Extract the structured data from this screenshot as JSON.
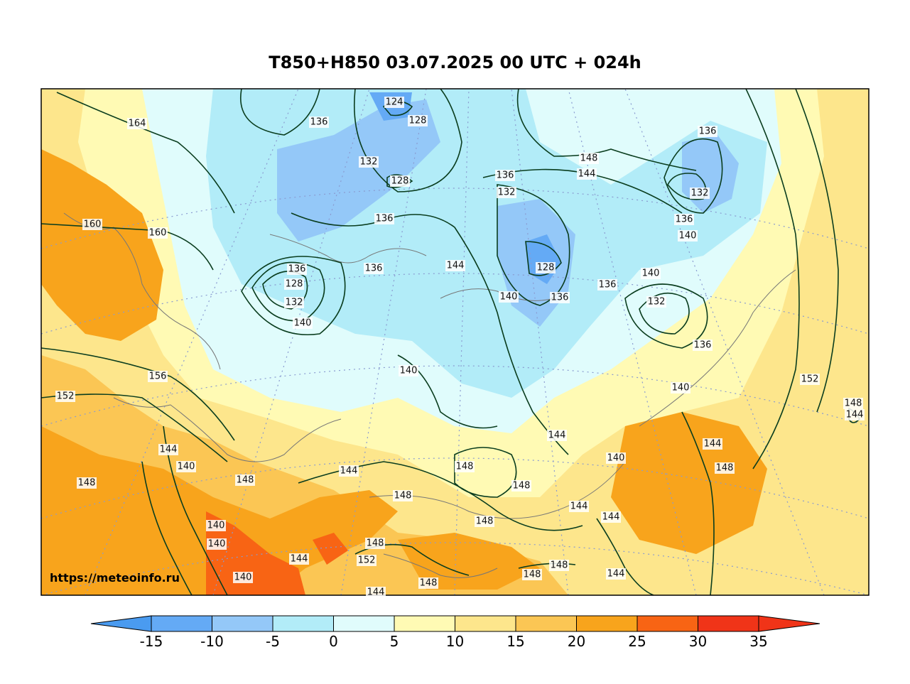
{
  "title": "T850+H850 03.07.2025 00 UTC + 024h",
  "watermark": "https://meteoinfo.ru",
  "contour_labels": [
    {
      "text": "164"
    },
    {
      "text": "160"
    },
    {
      "text": "160"
    },
    {
      "text": "156"
    },
    {
      "text": "152"
    },
    {
      "text": "152"
    },
    {
      "text": "124"
    },
    {
      "text": "128"
    },
    {
      "text": "128"
    },
    {
      "text": "136"
    },
    {
      "text": "132"
    },
    {
      "text": "136"
    },
    {
      "text": "136"
    },
    {
      "text": "128"
    },
    {
      "text": "132"
    },
    {
      "text": "140"
    },
    {
      "text": "136"
    },
    {
      "text": "144"
    },
    {
      "text": "140"
    },
    {
      "text": "136"
    },
    {
      "text": "132"
    },
    {
      "text": "128"
    },
    {
      "text": "140"
    },
    {
      "text": "136"
    },
    {
      "text": "148"
    },
    {
      "text": "144"
    },
    {
      "text": "140"
    },
    {
      "text": "136"
    },
    {
      "text": "132"
    },
    {
      "text": "136"
    },
    {
      "text": "140"
    },
    {
      "text": "136"
    },
    {
      "text": "132"
    },
    {
      "text": "136"
    },
    {
      "text": "140"
    },
    {
      "text": "148"
    },
    {
      "text": "144"
    },
    {
      "text": "144"
    },
    {
      "text": "140"
    },
    {
      "text": "148"
    },
    {
      "text": "144"
    },
    {
      "text": "148"
    },
    {
      "text": "148"
    },
    {
      "text": "148"
    },
    {
      "text": "148"
    },
    {
      "text": "144"
    },
    {
      "text": "144"
    },
    {
      "text": "140"
    },
    {
      "text": "144"
    },
    {
      "text": "148"
    },
    {
      "text": "148"
    },
    {
      "text": "140"
    },
    {
      "text": "140"
    },
    {
      "text": "144"
    },
    {
      "text": "148"
    },
    {
      "text": "152"
    },
    {
      "text": "144"
    },
    {
      "text": "148"
    },
    {
      "text": "148"
    },
    {
      "text": "148"
    },
    {
      "text": "144"
    },
    {
      "text": "140"
    },
    {
      "text": "144"
    }
  ],
  "legend": {
    "ticks": [
      "-15",
      "-10",
      "-5",
      "0",
      "5",
      "10",
      "15",
      "20",
      "25",
      "30",
      "35"
    ],
    "colors": [
      "#4a9bf0",
      "#64aaf5",
      "#94c8f8",
      "#b2ecf8",
      "#e0fcfc",
      "#fffab4",
      "#fde68c",
      "#fbc654",
      "#f8a41c",
      "#f86414",
      "#f03418"
    ],
    "under_color": "#4a9bf0",
    "over_color": "#f03418"
  },
  "colors": {
    "contour": "#0a3d1e",
    "grid": "#8a9bd0",
    "coast": "#777777"
  }
}
